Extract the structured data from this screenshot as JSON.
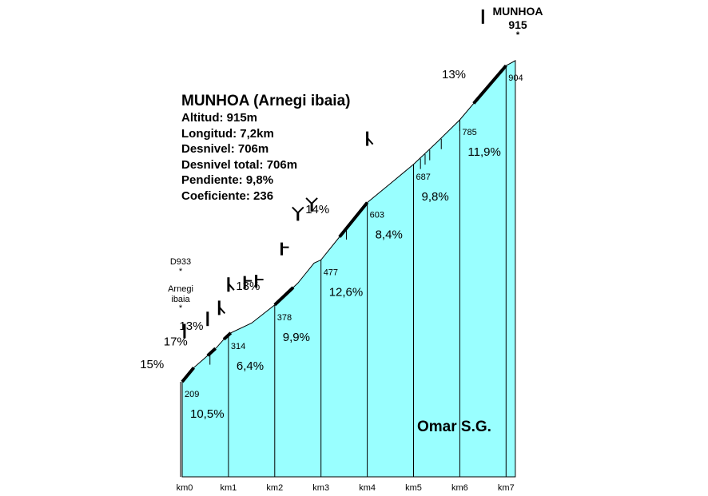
{
  "colors": {
    "fill": "#99FFFF",
    "line": "#000000",
    "background": "#FFFFFF"
  },
  "info": {
    "title": "MUNHOA (Arnegi ibaia)",
    "lines": [
      "Altitud:  915m",
      "Longitud:  7,2km",
      "Desnivel:  706m",
      "Desnivel total:  706m",
      "Pendiente:  9,8%",
      "Coeficiente:  236"
    ]
  },
  "author": "Omar S.G.",
  "summit": {
    "name": "MUNHOA",
    "altitude": "915",
    "marker": "*"
  },
  "side_labels": [
    {
      "text": "D933",
      "km": 0.0
    },
    {
      "text": "*",
      "km": 0.0
    },
    {
      "text": "Arnegi",
      "km": 0.0
    },
    {
      "text": "ibaia",
      "km": 0.0
    },
    {
      "text": "*",
      "km": 0.0
    }
  ],
  "chart_data": {
    "type": "area",
    "xlabel": "",
    "ylabel": "",
    "x_ticks": [
      "km0",
      "km1",
      "km2",
      "km3",
      "km4",
      "km5",
      "km6",
      "km7"
    ],
    "xlim": [
      0,
      7.2
    ],
    "ylim": [
      150,
      960
    ],
    "profile": [
      [
        0,
        209
      ],
      [
        0.25,
        240
      ],
      [
        0.5,
        262
      ],
      [
        0.75,
        285
      ],
      [
        1.0,
        314
      ],
      [
        1.5,
        338
      ],
      [
        2.0,
        378
      ],
      [
        2.5,
        426
      ],
      [
        2.85,
        470
      ],
      [
        3.0,
        477
      ],
      [
        3.5,
        540
      ],
      [
        4.0,
        603
      ],
      [
        4.5,
        645
      ],
      [
        5.0,
        687
      ],
      [
        5.5,
        735
      ],
      [
        6.0,
        785
      ],
      [
        6.5,
        845
      ],
      [
        7.0,
        904
      ],
      [
        7.2,
        915
      ]
    ],
    "km_altitudes": [
      {
        "km": 0,
        "altitude": 209
      },
      {
        "km": 1,
        "altitude": 314
      },
      {
        "km": 2,
        "altitude": 378
      },
      {
        "km": 3,
        "altitude": 477
      },
      {
        "km": 4,
        "altitude": 603
      },
      {
        "km": 5,
        "altitude": 687
      },
      {
        "km": 6,
        "altitude": 785
      },
      {
        "km": 7,
        "altitude": 904
      }
    ],
    "segment_gradients": [
      "10,5%",
      "6,4%",
      "9,9%",
      "12,6%",
      "8,4%",
      "9,8%",
      "11,9%"
    ],
    "steep_sections": [
      {
        "label": "15%",
        "from": 0.0,
        "to": 0.25
      },
      {
        "label": "17%",
        "from": 0.55,
        "to": 0.72
      },
      {
        "label": "13%",
        "from": 0.9,
        "to": 1.05
      },
      {
        "label": "13%",
        "from": 2.0,
        "to": 2.4
      },
      {
        "label": "14%",
        "from": 3.4,
        "to": 4.0
      },
      {
        "label": "13%",
        "from": 6.3,
        "to": 7.0
      }
    ]
  }
}
